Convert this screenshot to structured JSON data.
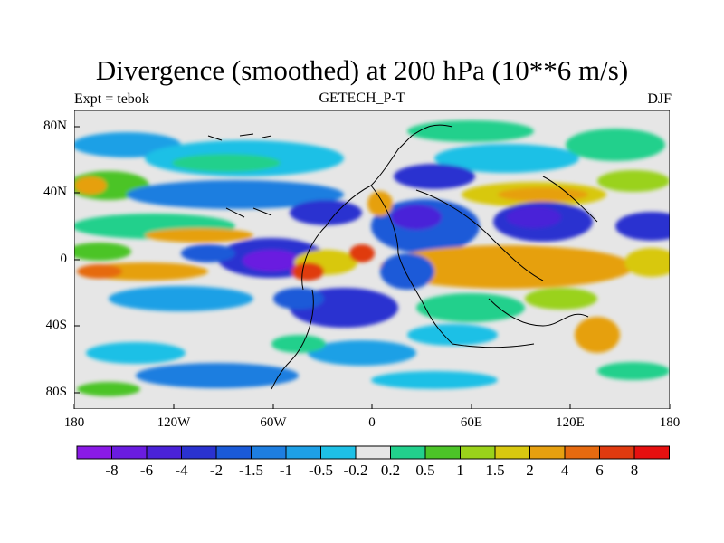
{
  "title": "Divergence (smoothed) at 200 hPa (10**6 m/s)",
  "subtitle": "GETECH_P-T",
  "left_label": "Expt = tebok",
  "right_label": "DJF",
  "chart_data": {
    "type": "heatmap",
    "title": "Divergence (smoothed) at 200 hPa (10**6 m/s)",
    "subtitle": "GETECH_P-T",
    "x_range": [
      -180,
      180
    ],
    "y_range": [
      -90,
      90
    ],
    "x_ticks": [
      "180",
      "120W",
      "60W",
      "0",
      "60E",
      "120E",
      "180"
    ],
    "y_ticks": [
      "80N",
      "40N",
      "0",
      "40S",
      "80S"
    ],
    "colorbar": {
      "labels": [
        "-8",
        "-6",
        "-4",
        "-2",
        "-1.5",
        "-1",
        "-0.5",
        "-0.2",
        "0.2",
        "0.5",
        "1",
        "1.5",
        "2",
        "4",
        "6",
        "8"
      ],
      "colors": [
        "#8a1ae6",
        "#6a1ce0",
        "#4a22d8",
        "#2a32d0",
        "#1a5ad8",
        "#1e7ee0",
        "#1ea0e6",
        "#1ec0e6",
        "#e6e6e6",
        "#22d08c",
        "#4cc428",
        "#9ad21a",
        "#d8c810",
        "#e6a010",
        "#e66a10",
        "#e03a10",
        "#e61010"
      ]
    }
  }
}
